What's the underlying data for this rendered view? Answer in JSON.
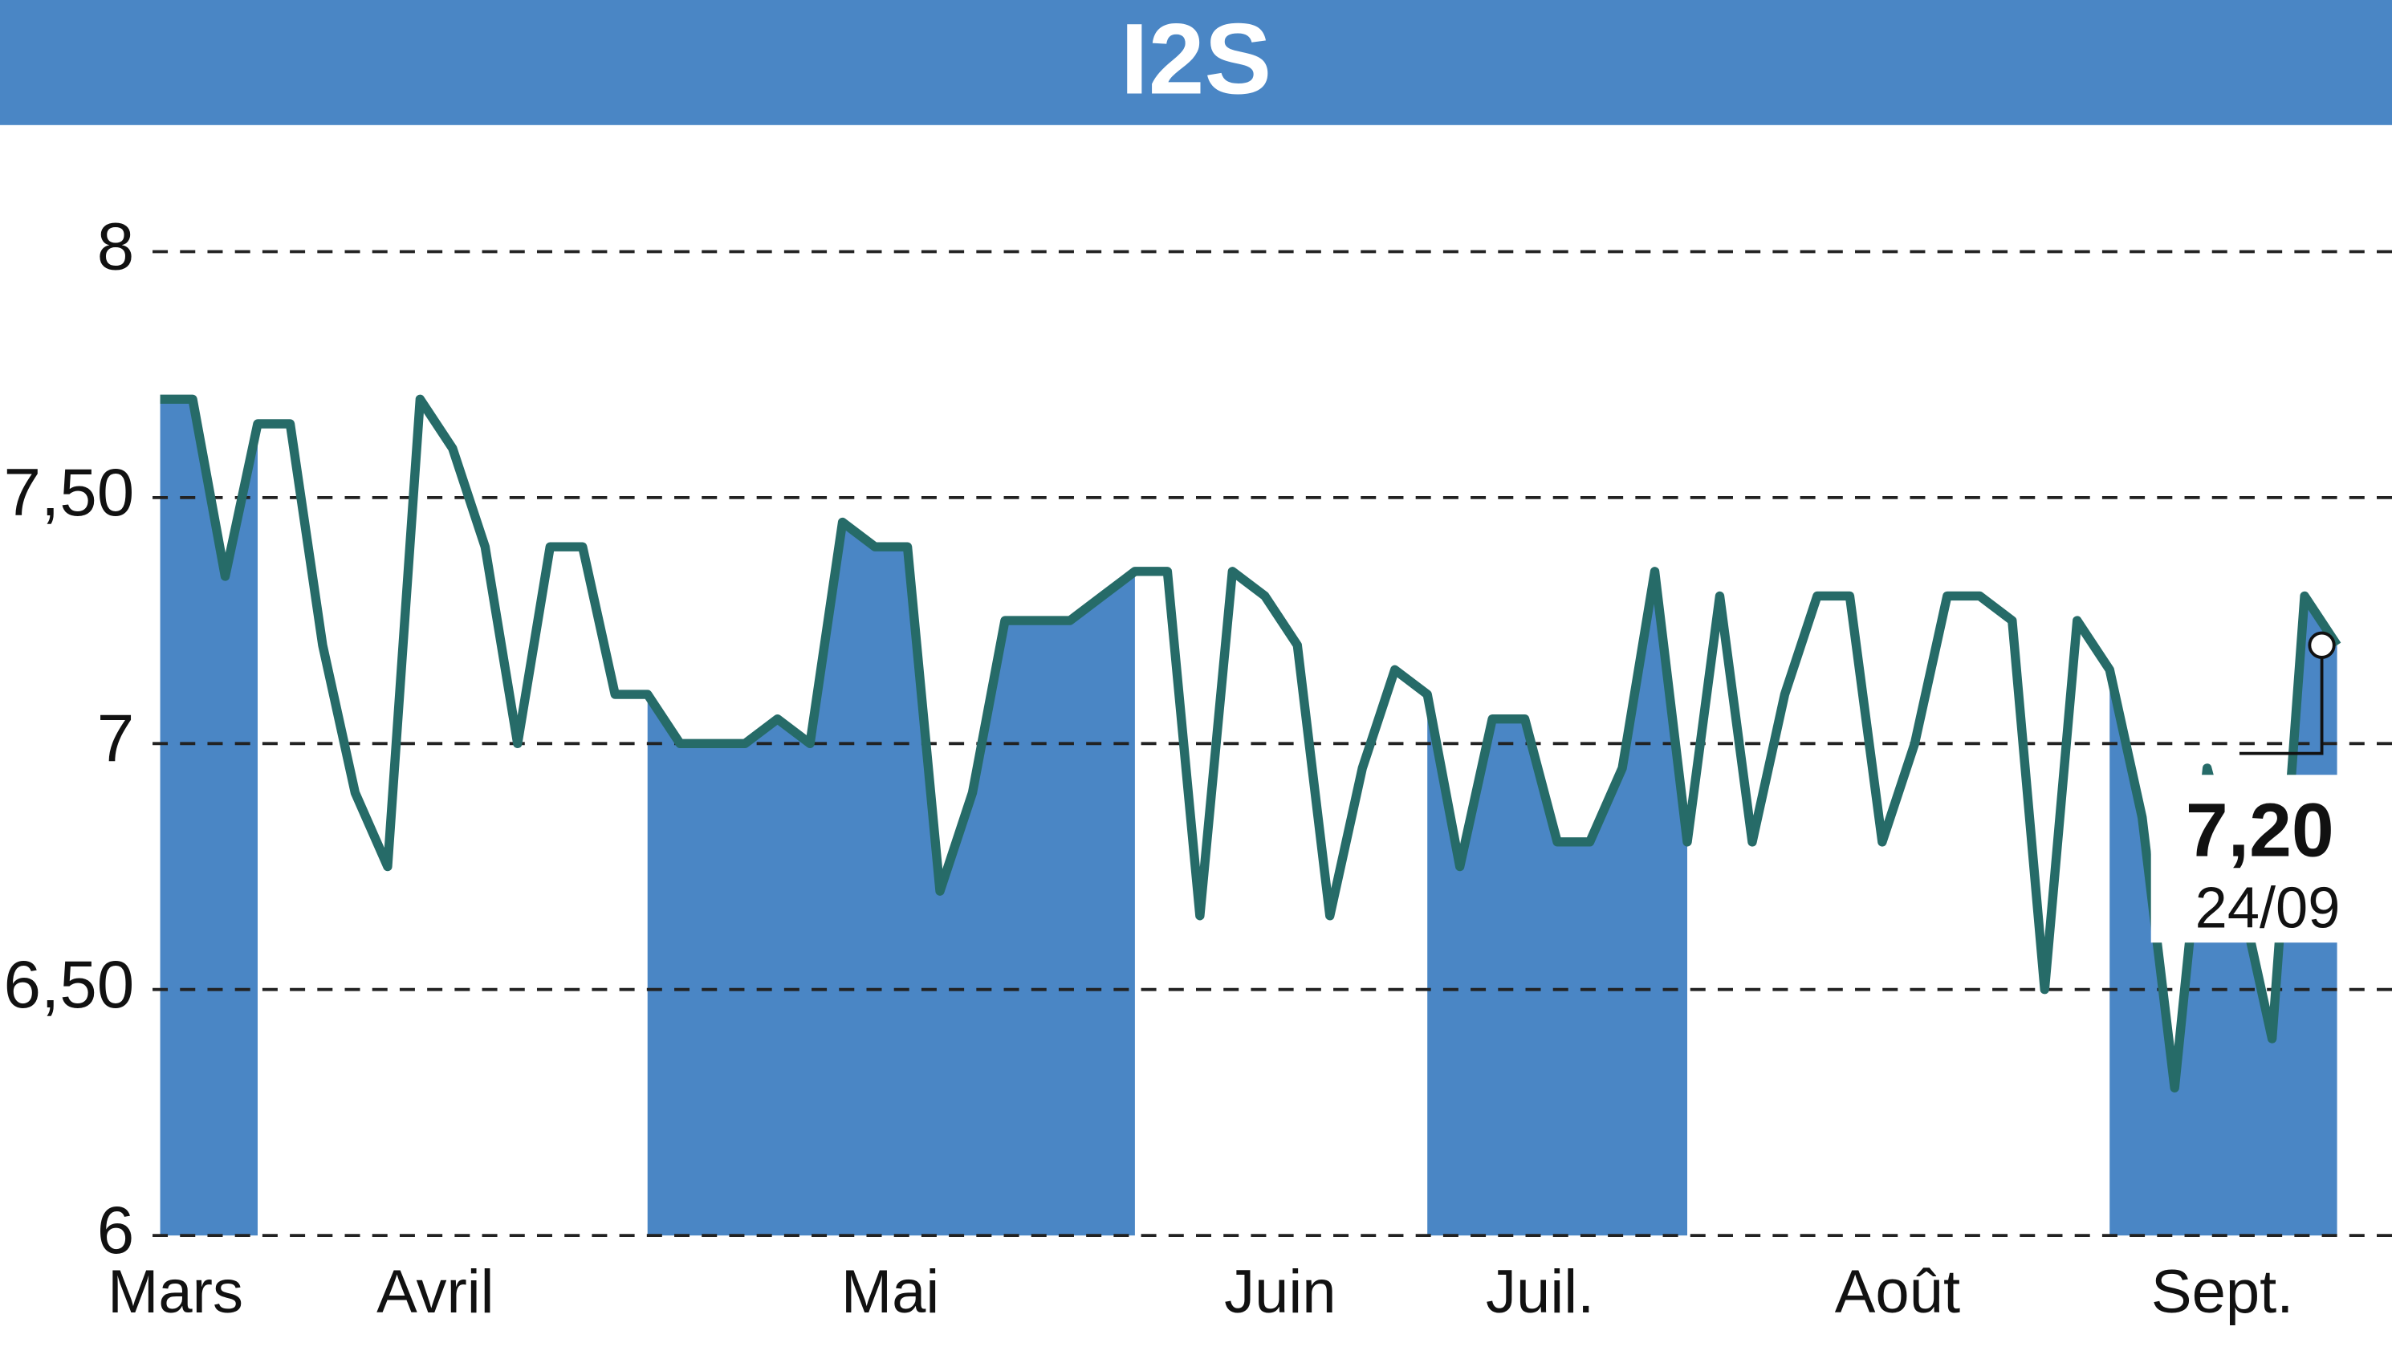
{
  "chart_data": {
    "type": "line",
    "title": "I2S",
    "categories": [
      "Mars",
      null,
      null,
      null,
      null,
      null,
      null,
      null,
      "Avril",
      null,
      null,
      null,
      null,
      null,
      null,
      null,
      null,
      null,
      null,
      null,
      null,
      null,
      "Mai",
      null,
      null,
      null,
      null,
      null,
      null,
      null,
      null,
      null,
      null,
      null,
      "Juin",
      null,
      null,
      null,
      null,
      null,
      null,
      null,
      "Juil.",
      null,
      null,
      null,
      null,
      null,
      null,
      null,
      null,
      null,
      null,
      "Août",
      null,
      null,
      null,
      null,
      null,
      null,
      null,
      null,
      null,
      "Sept.",
      null,
      null,
      null,
      null
    ],
    "series": [
      {
        "name": "I2S",
        "color": "#266b68",
        "values": [
          7.7,
          7.7,
          7.34,
          7.65,
          7.65,
          7.2,
          6.9,
          6.75,
          7.7,
          7.6,
          7.4,
          7.0,
          7.4,
          7.4,
          7.1,
          7.1,
          7.0,
          7.0,
          7.0,
          7.05,
          7.0,
          7.45,
          7.4,
          7.4,
          6.7,
          6.9,
          7.25,
          7.25,
          7.25,
          7.3,
          7.35,
          7.35,
          6.65,
          7.35,
          7.3,
          7.2,
          6.65,
          6.95,
          7.15,
          7.1,
          6.75,
          7.05,
          7.05,
          6.8,
          6.8,
          6.95,
          7.35,
          6.8,
          7.3,
          6.8,
          7.1,
          7.3,
          7.3,
          6.8,
          7.0,
          7.3,
          7.3,
          7.25,
          6.5,
          7.25,
          7.15,
          6.85,
          6.3,
          6.95,
          6.7,
          6.4,
          7.3,
          7.2
        ],
        "value_labels": [
          null,
          null,
          null,
          null,
          null,
          null,
          null,
          null,
          null,
          null,
          null,
          null,
          null,
          null,
          null,
          null,
          null,
          null,
          null,
          null,
          null,
          null,
          null,
          null,
          null,
          null,
          null,
          null,
          null,
          null,
          null,
          null,
          null,
          null,
          null,
          null,
          null,
          null,
          null,
          null,
          null,
          null,
          null,
          null,
          null,
          null,
          null,
          null,
          null,
          null,
          null,
          null,
          null,
          null,
          null,
          null,
          null,
          null,
          null,
          null,
          null,
          null,
          null,
          null,
          null,
          null,
          null,
          "7,20"
        ]
      }
    ],
    "shaded_ranges": [
      [
        0,
        3
      ],
      [
        15,
        30
      ],
      [
        39,
        47
      ],
      [
        60,
        67
      ]
    ],
    "shade_color": "#4a86c5",
    "last_date": "24/09",
    "ylim": [
      6,
      8
    ],
    "yticks": [
      6,
      {
        "value": 6.5,
        "label": "6,50"
      },
      7,
      {
        "value": 7.5,
        "label": "7,50"
      },
      8
    ],
    "grid": true
  }
}
